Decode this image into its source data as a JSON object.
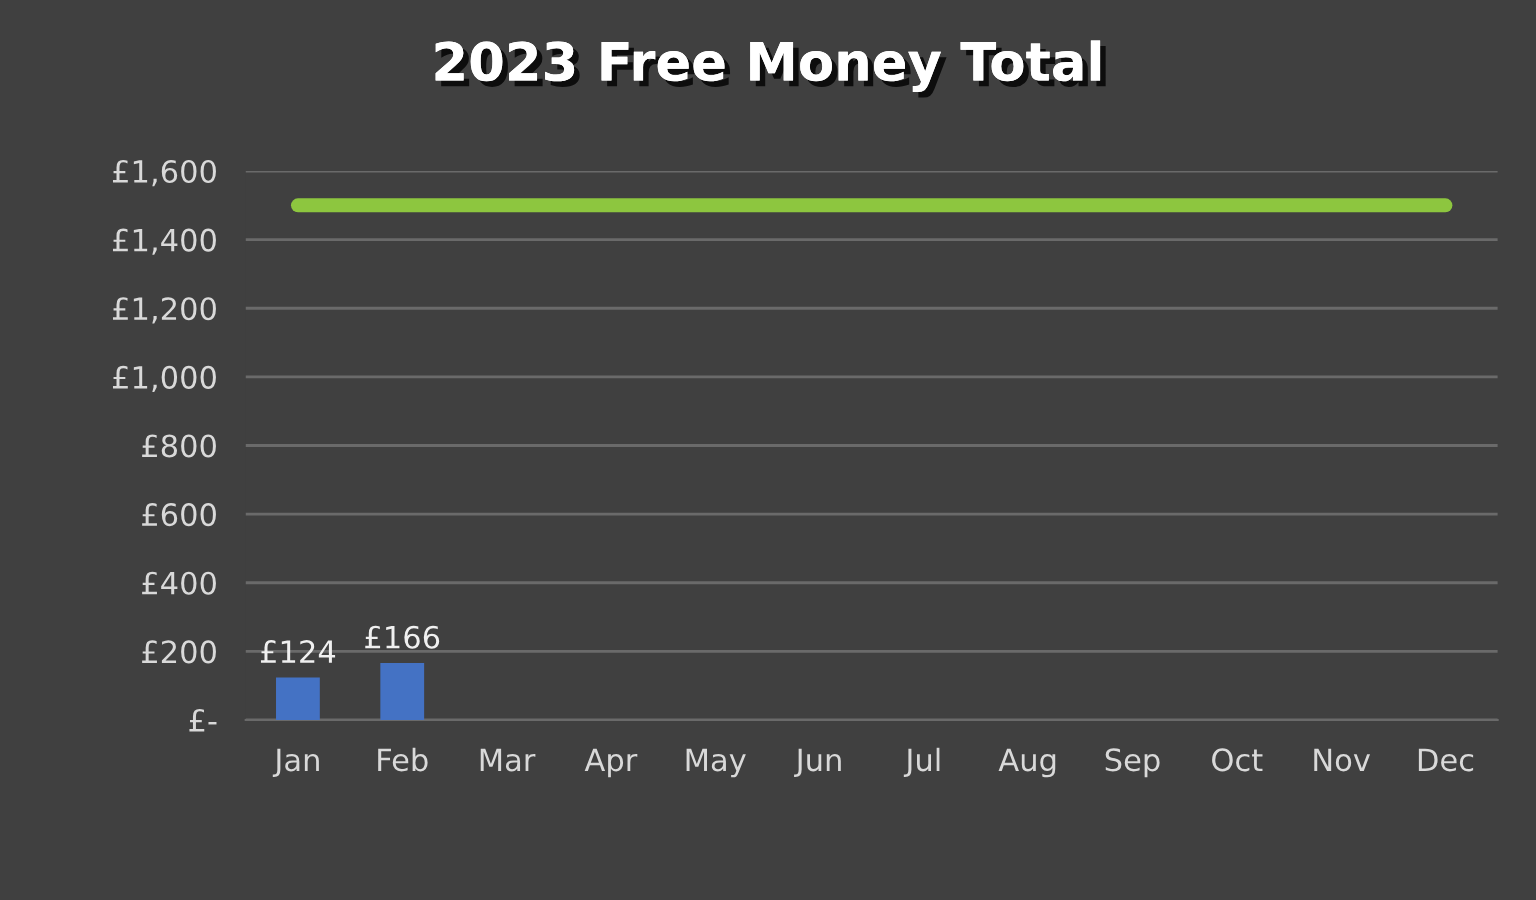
{
  "chart_data": {
    "type": "bar",
    "title": "2023 Free Money Total",
    "categories": [
      "Jan",
      "Feb",
      "Mar",
      "Apr",
      "May",
      "Jun",
      "Jul",
      "Aug",
      "Sep",
      "Oct",
      "Nov",
      "Dec"
    ],
    "series": [
      {
        "color": "#4472c4",
        "values": [
          124,
          166,
          null,
          null,
          null,
          null,
          null,
          null,
          null,
          null,
          null,
          null
        ],
        "value_labels": [
          "£124",
          "£166",
          null,
          null,
          null,
          null,
          null,
          null,
          null,
          null,
          null,
          null
        ]
      },
      {
        "type": "line",
        "color": "#8dc63f",
        "values": [
          1500,
          1500,
          1500,
          1500,
          1500,
          1500,
          1500,
          1500,
          1500,
          1500,
          1500,
          1500
        ]
      }
    ],
    "ylim": [
      0,
      1600
    ],
    "yticks": [
      {
        "value": 0,
        "label": "£-"
      },
      {
        "value": 200,
        "label": "£200"
      },
      {
        "value": 400,
        "label": "£400"
      },
      {
        "value": 600,
        "label": "£600"
      },
      {
        "value": 800,
        "label": "£800"
      },
      {
        "value": 1000,
        "label": "£1,000"
      },
      {
        "value": 1200,
        "label": "£1,200"
      },
      {
        "value": 1400,
        "label": "£1,400"
      },
      {
        "value": 1600,
        "label": "£1,600"
      }
    ],
    "grid": "y",
    "legend": false,
    "marker": "none",
    "line_style": "solid"
  }
}
